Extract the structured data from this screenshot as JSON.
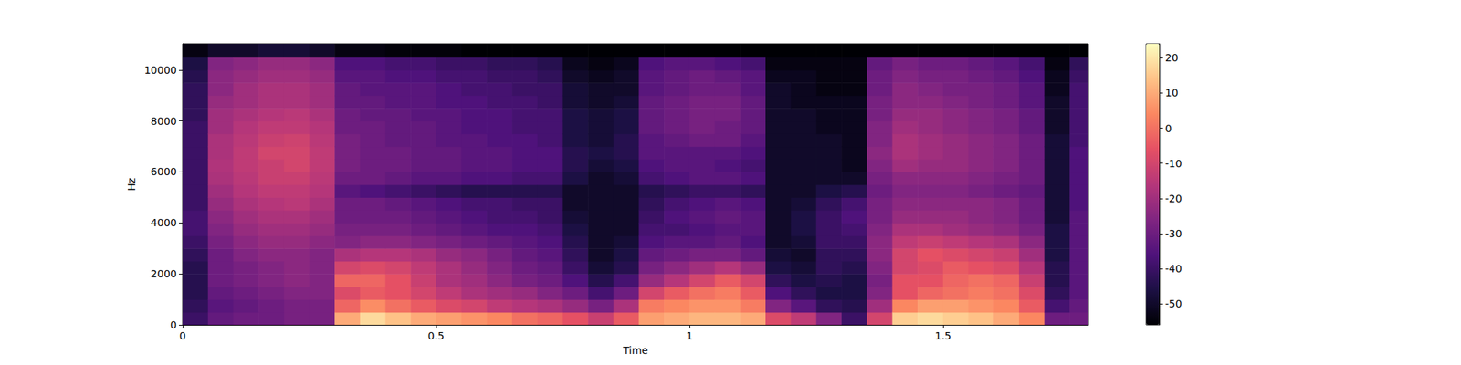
{
  "chart_data": {
    "type": "heatmap",
    "xlabel": "Time",
    "ylabel": "Hz",
    "xlim": [
      0,
      1.787
    ],
    "xticks": [
      0,
      0.5,
      1,
      1.5
    ],
    "ylim": [
      0,
      11025
    ],
    "yticks": [
      0,
      2000,
      4000,
      6000,
      8000,
      10000
    ],
    "cells": {
      "x": [
        0,
        0.05,
        0.1,
        0.15,
        0.2,
        0.25,
        0.3,
        0.35,
        0.4,
        0.45,
        0.5,
        0.55,
        0.6,
        0.65,
        0.7,
        0.75,
        0.8,
        0.85,
        0.9,
        0.95,
        1,
        1.05,
        1.1,
        1.15,
        1.2,
        1.25,
        1.3,
        1.35,
        1.4,
        1.45,
        1.5,
        1.55,
        1.6,
        1.65,
        1.7,
        1.75
      ],
      "y": [
        0,
        500,
        1000,
        1500,
        2000,
        2500,
        3000,
        3500,
        4000,
        4500,
        5000,
        5500,
        6000,
        6500,
        7000,
        7500,
        8000,
        8500,
        9000,
        9500,
        10000,
        10500
      ],
      "z": [
        [
          -40,
          -42,
          -44,
          -44,
          -44,
          -42,
          -40,
          -38,
          -38,
          -40,
          -40,
          -40,
          -40,
          -40,
          -40,
          -40,
          -42,
          -42,
          -42,
          -44,
          -46,
          -54
        ],
        [
          -32,
          -34,
          -32,
          -30,
          -30,
          -30,
          -28,
          -26,
          -24,
          -22,
          -20,
          -18,
          -17,
          -18,
          -18,
          -20,
          -20,
          -22,
          -24,
          -24,
          -26,
          -50
        ],
        [
          -30,
          -32,
          -30,
          -28,
          -28,
          -26,
          -24,
          -22,
          -20,
          -18,
          -16,
          -15,
          -14,
          -14,
          -15,
          -16,
          -18,
          -20,
          -20,
          -22,
          -24,
          -50
        ],
        [
          -30,
          -30,
          -28,
          -26,
          -26,
          -24,
          -22,
          -20,
          -18,
          -16,
          -14,
          -12,
          -12,
          -10,
          -12,
          -14,
          -16,
          -18,
          -18,
          -20,
          -22,
          -48
        ],
        [
          -28,
          -28,
          -26,
          -24,
          -24,
          -24,
          -22,
          -20,
          -18,
          -15,
          -14,
          -12,
          -10,
          -10,
          -11,
          -14,
          -15,
          -18,
          -18,
          -20,
          -22,
          -48
        ],
        [
          -28,
          -28,
          -26,
          -26,
          -26,
          -26,
          -24,
          -22,
          -20,
          -18,
          -16,
          -15,
          -14,
          -14,
          -15,
          -16,
          -18,
          -20,
          -20,
          -22,
          -24,
          -50
        ],
        [
          10,
          -2,
          -8,
          -2,
          -10,
          -18,
          -26,
          -28,
          -30,
          -30,
          -34,
          -30,
          -28,
          -28,
          -28,
          -30,
          -30,
          -32,
          -32,
          -34,
          -36,
          -54
        ],
        [
          18,
          5,
          -4,
          -2,
          -8,
          -16,
          -24,
          -28,
          -30,
          -30,
          -36,
          -30,
          -30,
          -30,
          -30,
          -30,
          -32,
          -32,
          -34,
          -34,
          -36,
          -54
        ],
        [
          14,
          0,
          -6,
          -6,
          -10,
          -16,
          -24,
          -28,
          -30,
          -32,
          -38,
          -32,
          -30,
          -30,
          -32,
          -32,
          -32,
          -34,
          -34,
          -36,
          -38,
          -55
        ],
        [
          10,
          -4,
          -10,
          -12,
          -14,
          -18,
          -26,
          -30,
          -32,
          -34,
          -40,
          -34,
          -32,
          -32,
          -32,
          -32,
          -34,
          -34,
          -34,
          -36,
          -38,
          -55
        ],
        [
          8,
          -8,
          -14,
          -18,
          -18,
          -22,
          -28,
          -32,
          -34,
          -36,
          -42,
          -34,
          -32,
          -32,
          -34,
          -34,
          -34,
          -36,
          -36,
          -38,
          -40,
          -55
        ],
        [
          6,
          -10,
          -18,
          -20,
          -22,
          -24,
          -30,
          -34,
          -36,
          -38,
          -44,
          -36,
          -34,
          -34,
          -34,
          -36,
          -36,
          -36,
          -38,
          -38,
          -40,
          -56
        ],
        [
          4,
          -14,
          -20,
          -24,
          -26,
          -28,
          -32,
          -36,
          -38,
          -38,
          -44,
          -36,
          -34,
          -34,
          -36,
          -36,
          -36,
          -38,
          -38,
          -40,
          -42,
          -56
        ],
        [
          0,
          -16,
          -22,
          -28,
          -30,
          -32,
          -34,
          -36,
          -38,
          -40,
          -44,
          -38,
          -36,
          -36,
          -36,
          -38,
          -38,
          -38,
          -40,
          -40,
          -42,
          -56
        ],
        [
          -2,
          -18,
          -26,
          -30,
          -32,
          -34,
          -36,
          -38,
          -40,
          -40,
          -44,
          -38,
          -36,
          -36,
          -38,
          -38,
          -38,
          -40,
          -40,
          -42,
          -44,
          -56
        ],
        [
          -6,
          -22,
          -30,
          -36,
          -40,
          -42,
          -44,
          -46,
          -48,
          -50,
          -50,
          -46,
          -44,
          -44,
          -46,
          -46,
          -46,
          -48,
          -48,
          -50,
          -52,
          -56
        ],
        [
          -12,
          -28,
          -38,
          -44,
          -48,
          -50,
          -50,
          -50,
          -50,
          -50,
          -50,
          -50,
          -48,
          -46,
          -48,
          -48,
          -48,
          -50,
          -50,
          -52,
          -54,
          -56
        ],
        [
          -4,
          -18,
          -30,
          -38,
          -44,
          -46,
          -48,
          -50,
          -50,
          -50,
          -50,
          -48,
          -46,
          -44,
          -44,
          -46,
          -46,
          -48,
          -50,
          -50,
          -52,
          -56
        ],
        [
          8,
          2,
          -10,
          -22,
          -28,
          -32,
          -36,
          -38,
          -40,
          -42,
          -44,
          -38,
          -36,
          -34,
          -34,
          -32,
          -32,
          -32,
          -34,
          -34,
          -36,
          -56
        ],
        [
          10,
          4,
          -4,
          -16,
          -24,
          -30,
          -34,
          -38,
          -36,
          -38,
          -42,
          -36,
          -34,
          -34,
          -32,
          -30,
          -30,
          -30,
          -32,
          -32,
          -34,
          -56
        ],
        [
          12,
          6,
          0,
          -10,
          -20,
          -28,
          -34,
          -36,
          -34,
          -36,
          -40,
          -34,
          -34,
          -34,
          -30,
          -28,
          -28,
          -28,
          -30,
          -30,
          -34,
          -56
        ],
        [
          12,
          6,
          2,
          -4,
          -16,
          -28,
          -32,
          -34,
          -32,
          -34,
          -40,
          -34,
          -36,
          -34,
          -30,
          -30,
          -28,
          -28,
          -30,
          -32,
          -36,
          -56
        ],
        [
          10,
          2,
          -4,
          -10,
          -22,
          -32,
          -36,
          -34,
          -34,
          -36,
          -42,
          -36,
          -38,
          -36,
          -34,
          -32,
          -32,
          -32,
          -34,
          -34,
          -38,
          -56
        ],
        [
          -8,
          -26,
          -36,
          -42,
          -46,
          -48,
          -50,
          -50,
          -50,
          -50,
          -50,
          -50,
          -50,
          -50,
          -50,
          -50,
          -50,
          -50,
          -50,
          -52,
          -54,
          -56
        ],
        [
          -14,
          -34,
          -42,
          -46,
          -48,
          -50,
          -48,
          -46,
          -46,
          -48,
          -50,
          -50,
          -50,
          -50,
          -50,
          -50,
          -50,
          -52,
          -52,
          -52,
          -54,
          -56
        ],
        [
          -26,
          -42,
          -46,
          -44,
          -42,
          -42,
          -40,
          -40,
          -40,
          -42,
          -46,
          -50,
          -50,
          -50,
          -50,
          -52,
          -52,
          -52,
          -54,
          -54,
          -54,
          -56
        ],
        [
          -40,
          -44,
          -46,
          -46,
          -44,
          -42,
          -40,
          -38,
          -36,
          -38,
          -44,
          -50,
          -52,
          -52,
          -52,
          -52,
          -52,
          -52,
          -54,
          -54,
          -54,
          -56
        ],
        [
          -10,
          -20,
          -26,
          -28,
          -26,
          -24,
          -24,
          -26,
          -28,
          -28,
          -30,
          -28,
          -26,
          -24,
          -26,
          -26,
          -28,
          -28,
          -30,
          -30,
          -32,
          -56
        ],
        [
          16,
          4,
          -6,
          -6,
          -10,
          -10,
          -14,
          -18,
          -22,
          -24,
          -26,
          -24,
          -20,
          -18,
          -18,
          -20,
          -22,
          -24,
          -24,
          -26,
          -28,
          -56
        ],
        [
          18,
          8,
          -2,
          -6,
          -8,
          -6,
          -12,
          -18,
          -22,
          -24,
          -26,
          -24,
          -22,
          -20,
          -20,
          -22,
          -22,
          -24,
          -26,
          -28,
          -30,
          -56
        ],
        [
          16,
          8,
          0,
          -2,
          -4,
          -8,
          -14,
          -20,
          -22,
          -24,
          -26,
          -24,
          -22,
          -22,
          -22,
          -24,
          -24,
          -26,
          -28,
          -28,
          -30,
          -56
        ],
        [
          14,
          6,
          2,
          0,
          -6,
          -10,
          -16,
          -22,
          -24,
          -24,
          -28,
          -26,
          -24,
          -24,
          -24,
          -26,
          -26,
          -28,
          -28,
          -30,
          -32,
          -56
        ],
        [
          10,
          4,
          0,
          -2,
          -8,
          -12,
          -18,
          -24,
          -26,
          -26,
          -30,
          -28,
          -26,
          -26,
          -26,
          -28,
          -28,
          -30,
          -30,
          -32,
          -34,
          -56
        ],
        [
          4,
          -4,
          -8,
          -12,
          -16,
          -20,
          -24,
          -28,
          -30,
          -30,
          -32,
          -30,
          -30,
          -30,
          -30,
          -32,
          -32,
          -34,
          -34,
          -36,
          -38,
          -56
        ],
        [
          -30,
          -38,
          -42,
          -44,
          -44,
          -46,
          -46,
          -46,
          -48,
          -48,
          -48,
          -48,
          -48,
          -48,
          -48,
          -50,
          -50,
          -50,
          -52,
          -52,
          -54,
          -56
        ],
        [
          -30,
          -32,
          -34,
          -34,
          -34,
          -34,
          -34,
          -34,
          -34,
          -36,
          -36,
          -36,
          -36,
          -36,
          -38,
          -38,
          -38,
          -38,
          -38,
          -40,
          -42,
          -56
        ]
      ]
    },
    "colorbar": {
      "range": [
        -56,
        24
      ],
      "ticks": [
        -50,
        -40,
        -30,
        -20,
        -10,
        0,
        10,
        20
      ]
    }
  }
}
